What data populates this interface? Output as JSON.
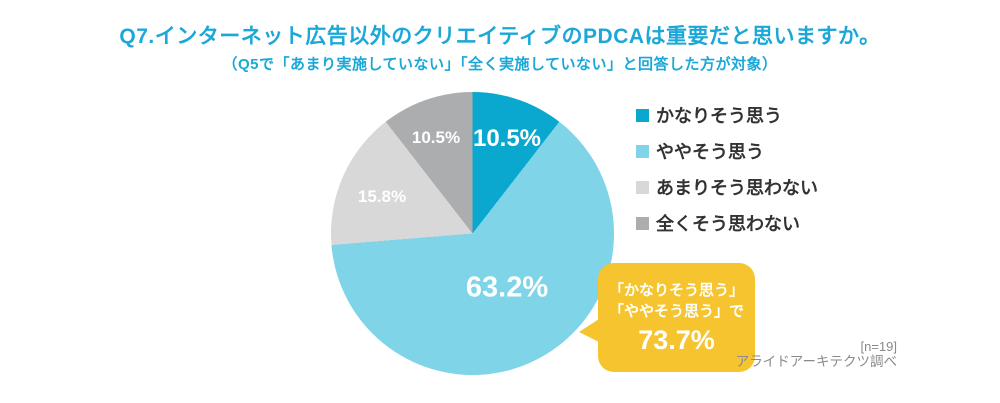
{
  "header": {
    "title": "Q7.インターネット広告以外のクリエイティブのPDCAは重要だと思いますか。",
    "subtitle": "（Q5で「あまり実施していない」「全く実施していない」と回答した方が対象）",
    "accent_color": "#1BA8D8"
  },
  "chart_data": {
    "type": "pie",
    "title": "Q7.インターネット広告以外のクリエイティブのPDCAは重要だと思いますか。",
    "subtitle": "（Q5で「あまり実施していない」「全く実施していない」と回答した方が対象）",
    "start_angle_deg": 0,
    "direction": "clockwise",
    "legend_position": "right",
    "n": 19,
    "slices": [
      {
        "name": "かなりそう思う",
        "value": 10.5,
        "label": "10.5%",
        "color": "#0AA7CE"
      },
      {
        "name": "ややそう思う",
        "value": 63.2,
        "label": "63.2%",
        "color": "#7FD4E8"
      },
      {
        "name": "あまりそう思わない",
        "value": 15.8,
        "label": "15.8%",
        "color": "#D8D8D8"
      },
      {
        "name": "全くそう思わない",
        "value": 10.5,
        "label": "10.5%",
        "color": "#ACADAF"
      }
    ]
  },
  "legend": {
    "items": [
      {
        "label": "かなりそう思う",
        "color": "#0AA7CE"
      },
      {
        "label": "ややそう思う",
        "color": "#7FD4E8"
      },
      {
        "label": "あまりそう思わない",
        "color": "#D8D8D8"
      },
      {
        "label": "全くそう思わない",
        "color": "#ACADAF"
      }
    ]
  },
  "callout": {
    "line1": "「かなりそう思う」",
    "line2": "「ややそう思う」で",
    "value": "73.7%",
    "bg_color": "#F5C42E"
  },
  "footer": {
    "n_label": "[n=19]",
    "source": "アライドアーキテクツ調べ"
  }
}
